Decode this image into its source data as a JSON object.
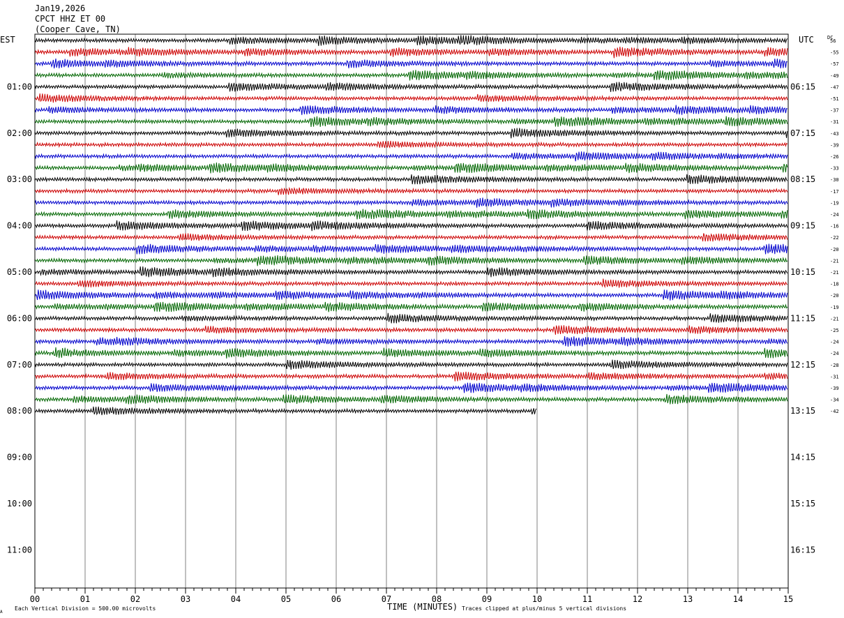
{
  "header": {
    "date": "Jan19,2026",
    "station": "CPCT HHZ ET 00",
    "location": "(Cooper Cave, TN)"
  },
  "labels": {
    "left_tz": "EST",
    "right_tz": "UTC",
    "dc": "DC"
  },
  "footer": {
    "division_note": "Each Vertical Division =  500.00 microvolts",
    "xlabel": "TIME (MINUTES)",
    "clip_note": "Traces clipped at plus/minus 5 vertical divisions",
    "corner_mark": "A"
  },
  "chart_data": {
    "type": "line",
    "title": "CPCT HHZ ET 00 (Cooper Cave, TN)",
    "xlabel": "TIME (MINUTES)",
    "x_ticks": [
      "00",
      "01",
      "02",
      "03",
      "04",
      "05",
      "06",
      "07",
      "08",
      "09",
      "10",
      "11",
      "12",
      "13",
      "14",
      "15"
    ],
    "xlim": [
      0,
      15
    ],
    "left_hour_labels": [
      "01:00",
      "02:00",
      "03:00",
      "04:00",
      "05:00",
      "06:00",
      "07:00",
      "08:00",
      "09:00",
      "10:00",
      "11:00"
    ],
    "right_hour_labels": [
      "06:15",
      "07:15",
      "08:15",
      "09:15",
      "10:15",
      "11:15",
      "12:15",
      "13:15",
      "14:15",
      "15:15",
      "16:15"
    ],
    "trace_colors": [
      "#000000",
      "#cc0000",
      "#0000cc",
      "#006600"
    ],
    "dc_offsets": [
      "56",
      "-55",
      "-57",
      "-49",
      "-47",
      "-51",
      "-37",
      "-31",
      "-43",
      "-39",
      "-26",
      "-33",
      "-30",
      "-17",
      "-19",
      "-24",
      "-16",
      "-22",
      "-20",
      "-21",
      "-21",
      "-18",
      "-20",
      "-19",
      "-21",
      "-25",
      "-24",
      "-24",
      "-28",
      "-31",
      "-39",
      "-34",
      "-42"
    ],
    "rows_total": 48,
    "rows_with_data": 33,
    "last_row_end_minute": 10,
    "grid": "vertical minute lines",
    "units": "500.00 microvolts per vertical division"
  }
}
